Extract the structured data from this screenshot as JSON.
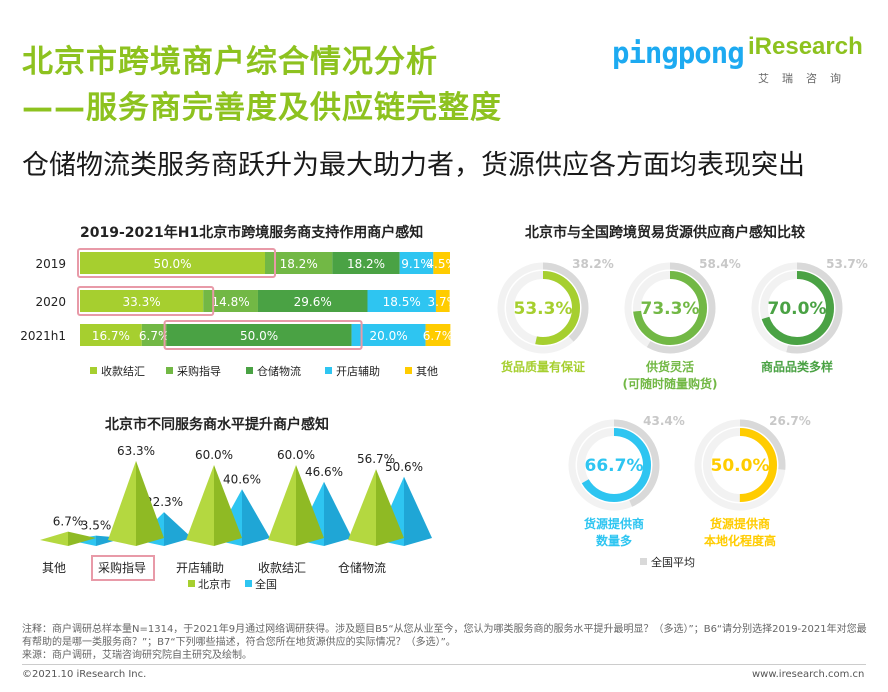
{
  "header": {
    "title_line1": "北京市跨境商户综合情况分析",
    "title_line2": "——服务商完善度及供应链完整度",
    "subtitle": "仓储物流类服务商跃升为最大助力者，货源供应各方面均表现突出",
    "logo_pingpong": "pingpong",
    "logo_iresearch": "iResearch",
    "logo_iresearch_cn": "艾瑞咨询"
  },
  "colors": {
    "green_light": "#a6cf2f",
    "green_mid": "#72b845",
    "green_dark": "#4aa244",
    "blue": "#2ec5f1",
    "yellow": "#ffcc00",
    "grey": "#d9d9d9",
    "highlight": "#e89aa8"
  },
  "chart_data": [
    {
      "type": "stacked-bar-horizontal",
      "title": "2019-2021年H1北京市跨境服务商支持作用商户感知",
      "categories": [
        "2019",
        "2020",
        "2021h1"
      ],
      "series": [
        {
          "name": "收款结汇",
          "values": [
            50.0,
            33.3,
            16.7
          ]
        },
        {
          "name": "采购指导",
          "values": [
            18.2,
            14.8,
            6.7
          ]
        },
        {
          "name": "仓储物流",
          "values": [
            18.2,
            29.6,
            50.0
          ]
        },
        {
          "name": "开店辅助",
          "values": [
            9.1,
            18.5,
            20.0
          ]
        },
        {
          "name": "其他",
          "values": [
            4.5,
            3.7,
            6.7
          ]
        }
      ],
      "data_labels": [
        [
          "50.0%",
          "18.2%",
          "18.2%",
          "9.1%",
          "4.5%"
        ],
        [
          "33.3%",
          "14.8%",
          "29.6%",
          "18.5%",
          "3.7%"
        ],
        [
          "16.7%",
          "6.7%",
          "50.0%",
          "20.0%",
          "6.7%"
        ]
      ],
      "highlighted": [
        [
          0,
          0
        ],
        [
          1,
          0
        ],
        [
          2,
          2
        ]
      ],
      "xlim": [
        0,
        100
      ]
    },
    {
      "type": "pyramid-bar",
      "title": "北京市不同服务商水平提升商户感知",
      "categories": [
        "其他",
        "采购指导",
        "开店辅助",
        "收款结汇",
        "仓储物流"
      ],
      "series": [
        {
          "name": "北京市",
          "values": [
            6.7,
            63.3,
            60.0,
            60.0,
            56.7
          ]
        },
        {
          "name": "全国",
          "values": [
            3.5,
            22.3,
            40.6,
            46.6,
            50.6
          ]
        }
      ],
      "data_labels": {
        "北京市": [
          "6.7%",
          "63.3%",
          "60.0%",
          "60.0%",
          "56.7%"
        ],
        "全国": [
          "3.5%",
          "22.3%",
          "40.6%",
          "46.6%",
          "50.6%"
        ]
      },
      "highlighted_category": "采购指导",
      "ylim": [
        0,
        70
      ]
    },
    {
      "type": "donut",
      "title": "北京市与全国跨境贸易货源供应商户感知比较",
      "items": [
        {
          "label": "货品质量有保证",
          "beijing": 53.3,
          "national": 38.2,
          "beijing_label": "53.3%",
          "national_label": "38.2%",
          "color": "#a6cf2f"
        },
        {
          "label": "供货灵活\n(可随时随量购货)",
          "beijing": 73.3,
          "national": 58.4,
          "beijing_label": "73.3%",
          "national_label": "58.4%",
          "color": "#72b845"
        },
        {
          "label": "商品品类多样",
          "beijing": 70.0,
          "national": 53.7,
          "beijing_label": "70.0%",
          "national_label": "53.7%",
          "color": "#4aa244"
        },
        {
          "label": "货源提供商\n数量多",
          "beijing": 66.7,
          "national": 43.4,
          "beijing_label": "66.7%",
          "national_label": "43.4%",
          "color": "#2ec5f1"
        },
        {
          "label": "货源提供商\n本地化程度高",
          "beijing": 50.0,
          "national": 26.7,
          "beijing_label": "50.0%",
          "national_label": "26.7%",
          "color": "#ffcc00"
        }
      ],
      "legend": "全国平均"
    }
  ],
  "footnote": {
    "note": "注释：商户调研总样本量N=1314，于2021年9月通过网络调研获得。涉及题目B5“从您从业至今，您认为哪类服务商的服务水平提升最明显？（多选）”；B6“请分别选择2019-2021年对您最有帮助的是哪一类服务商？”；B7“下列哪些描述，符合您所在地货源供应的实际情况？（多选）”。",
    "source": "来源：商户调研，艾瑞咨询研究院自主研究及绘制。"
  },
  "footer": {
    "copyright": "©2021.10 iResearch Inc.",
    "website": "www.iresearch.com.cn"
  }
}
